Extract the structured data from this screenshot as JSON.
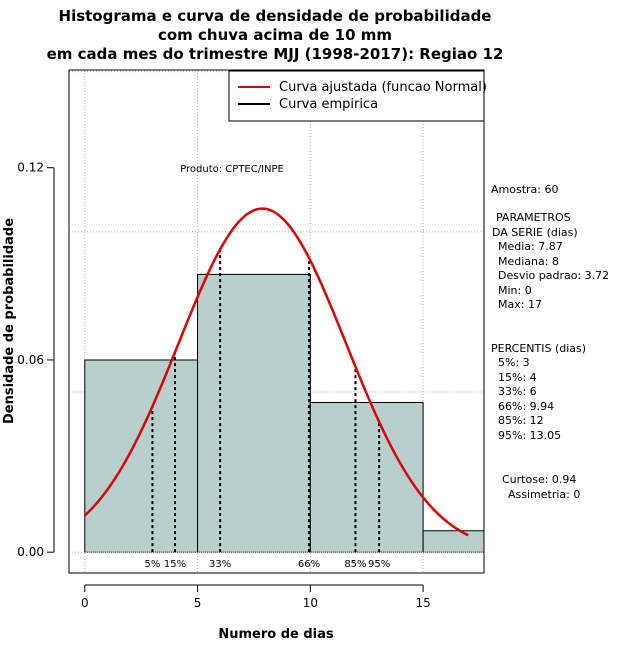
{
  "chart_data": {
    "type": "bar",
    "title_lines": [
      "Histograma e curva de densidade de probabilidade",
      "com chuva acima de 10 mm",
      "em cada mes do trimestre MJJ (1998-2017): Regiao 12"
    ],
    "xlabel": "Numero de dias",
    "ylabel": "Densidade de probabilidade",
    "xlim": [
      -0.7,
      17.7
    ],
    "ylim": [
      -0.0065,
      0.1505
    ],
    "x_ticks": [
      0,
      5,
      10,
      15
    ],
    "y_ticks": [
      0.0,
      0.06,
      0.12
    ],
    "y_tick_labels": [
      "0.00",
      "0.06",
      "0.12"
    ],
    "grid_y": [
      0.0,
      0.05,
      0.1,
      0.15
    ],
    "grid_x": [
      0,
      5,
      10,
      15
    ],
    "bins": [
      {
        "start": 0,
        "end": 5,
        "density": 0.06
      },
      {
        "start": 5,
        "end": 10,
        "density": 0.0867
      },
      {
        "start": 10,
        "end": 15,
        "density": 0.0467
      },
      {
        "start": 15,
        "end": 18,
        "density": 0.0067
      }
    ],
    "bar_color": "#b7cfcf",
    "normal_curve": {
      "mean": 7.87,
      "sd": 3.72,
      "x_range": [
        0,
        17
      ],
      "color": "#dd0000"
    },
    "percentile_lines": [
      {
        "label": "5%",
        "x": 3
      },
      {
        "label": "15%",
        "x": 4
      },
      {
        "label": "33%",
        "x": 6
      },
      {
        "label": "66%",
        "x": 9.94
      },
      {
        "label": "85%",
        "x": 12
      },
      {
        "label": "95%",
        "x": 13.05
      }
    ],
    "legend": [
      {
        "label": "Curva ajustada (funcao Normal)",
        "color": "#dd0000"
      },
      {
        "label": "Curva empirica",
        "color": "#000000"
      }
    ],
    "annotation": "Produto: CPTEC/INPE"
  },
  "side_panel": {
    "amostra": "Amostra: 60",
    "parametros_title_1": "PARAMETROS",
    "parametros_title_2": "DA SERIE (dias)",
    "parametros": [
      "Media: 7.87",
      "Mediana: 8",
      "Desvio padrao: 3.72",
      "Min: 0",
      "Max: 17"
    ],
    "percentis_title": "PERCENTIS (dias)",
    "percentis": [
      "5%: 3",
      "15%: 4",
      "33%: 6",
      "66%: 9.94",
      "85%: 12",
      "95%: 13.05"
    ],
    "curtose": "Curtose: 0.94",
    "assimetria": "Assimetria: 0"
  }
}
